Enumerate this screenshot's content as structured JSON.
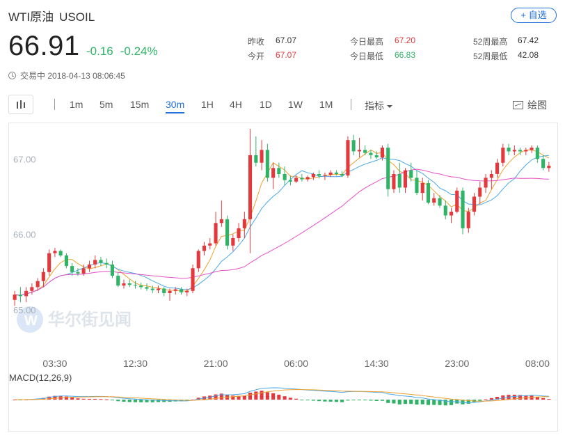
{
  "header": {
    "name": "WTI原油",
    "symbol": "USOIL",
    "watch_label": "+ 自选",
    "price": "66.91",
    "change": "-0.16",
    "change_pct": "-0.24%",
    "status": "交易中",
    "timestamp": "2018-04-13 08:06:45"
  },
  "stats": [
    {
      "label": "昨收",
      "value": "67.07",
      "color": "dark"
    },
    {
      "label": "今开",
      "value": "67.07",
      "color": "red"
    },
    {
      "label": "今日最高",
      "value": "67.20",
      "color": "red"
    },
    {
      "label": "今日最低",
      "value": "66.83",
      "color": "green"
    },
    {
      "label": "52周最高",
      "value": "67.42",
      "color": "dark"
    },
    {
      "label": "52周最低",
      "value": "42.08",
      "color": "dark"
    }
  ],
  "toolbar": {
    "timeframes": [
      "1m",
      "5m",
      "15m",
      "30m",
      "1H",
      "4H",
      "1D",
      "1W",
      "1M"
    ],
    "active": "30m",
    "indicator_label": "指标",
    "draw_label": "绘图"
  },
  "watermark": "华尔街见闻",
  "colors": {
    "up": "#e4393c",
    "down": "#2fb466",
    "ma_short": "#f0a030",
    "ma_mid": "#4aa8e8",
    "ma_long": "#e64fc8",
    "accent": "#1e6fd9"
  },
  "chart_data": {
    "type": "candlestick",
    "title": "",
    "y_ticks": [
      "67.00",
      "66.00",
      "65.00"
    ],
    "y_tick_values": [
      67.0,
      66.0,
      65.0
    ],
    "ylim": [
      64.5,
      67.4
    ],
    "x_ticks": [
      "03:30",
      "12:30",
      "21:00",
      "06:00",
      "14:30",
      "23:00",
      "08:00"
    ],
    "x_tick_index": [
      7,
      21,
      35,
      49,
      63,
      77,
      91
    ],
    "candles": [
      [
        65.13,
        65.25,
        65.05,
        65.2
      ],
      [
        65.2,
        65.3,
        65.1,
        65.18
      ],
      [
        65.18,
        65.3,
        65.1,
        65.25
      ],
      [
        65.25,
        65.35,
        65.2,
        65.3
      ],
      [
        65.3,
        65.42,
        65.25,
        65.38
      ],
      [
        65.38,
        65.55,
        65.3,
        65.5
      ],
      [
        65.5,
        65.8,
        65.45,
        65.75
      ],
      [
        65.75,
        65.82,
        65.7,
        65.78
      ],
      [
        65.78,
        65.8,
        65.7,
        65.72
      ],
      [
        65.72,
        65.75,
        65.55,
        65.58
      ],
      [
        65.58,
        65.62,
        65.45,
        65.5
      ],
      [
        65.5,
        65.55,
        65.45,
        65.48
      ],
      [
        65.48,
        65.6,
        65.45,
        65.55
      ],
      [
        65.55,
        65.65,
        65.5,
        65.6
      ],
      [
        65.6,
        65.72,
        65.55,
        65.66
      ],
      [
        65.66,
        65.7,
        65.58,
        65.62
      ],
      [
        65.62,
        65.68,
        65.55,
        65.6
      ],
      [
        65.6,
        65.65,
        65.42,
        65.45
      ],
      [
        65.45,
        65.5,
        65.3,
        65.32
      ],
      [
        65.32,
        65.4,
        65.28,
        65.35
      ],
      [
        65.35,
        65.4,
        65.3,
        65.33
      ],
      [
        65.33,
        65.38,
        65.28,
        65.32
      ],
      [
        65.32,
        65.36,
        65.27,
        65.3
      ],
      [
        65.3,
        65.35,
        65.25,
        65.28
      ],
      [
        65.28,
        65.32,
        65.22,
        65.26
      ],
      [
        65.26,
        65.32,
        65.22,
        65.28
      ],
      [
        65.28,
        65.3,
        65.18,
        65.22
      ],
      [
        65.22,
        65.28,
        65.12,
        65.25
      ],
      [
        65.25,
        65.3,
        65.2,
        65.27
      ],
      [
        65.27,
        65.3,
        65.2,
        65.23
      ],
      [
        65.23,
        65.28,
        65.18,
        65.25
      ],
      [
        65.25,
        65.6,
        65.22,
        65.55
      ],
      [
        65.55,
        65.8,
        65.5,
        65.78
      ],
      [
        65.78,
        65.9,
        65.72,
        65.85
      ],
      [
        65.85,
        65.95,
        65.8,
        65.88
      ],
      [
        65.88,
        66.3,
        65.85,
        66.15
      ],
      [
        66.15,
        66.45,
        66.1,
        66.2
      ],
      [
        66.2,
        66.25,
        65.8,
        65.85
      ],
      [
        65.85,
        66.0,
        65.78,
        65.95
      ],
      [
        65.95,
        66.15,
        65.9,
        66.08
      ],
      [
        66.08,
        66.3,
        65.95,
        66.2
      ],
      [
        66.2,
        67.4,
        65.75,
        67.05
      ],
      [
        67.05,
        67.3,
        66.9,
        66.95
      ],
      [
        66.95,
        67.25,
        66.85,
        67.12
      ],
      [
        67.12,
        67.2,
        66.7,
        66.75
      ],
      [
        66.75,
        66.95,
        66.6,
        66.88
      ],
      [
        66.88,
        66.95,
        66.75,
        66.8
      ],
      [
        66.8,
        66.9,
        66.65,
        66.72
      ],
      [
        66.72,
        66.78,
        66.65,
        66.7
      ],
      [
        66.7,
        66.78,
        66.68,
        66.75
      ],
      [
        66.75,
        66.8,
        66.7,
        66.73
      ],
      [
        66.73,
        66.78,
        66.7,
        66.76
      ],
      [
        66.76,
        66.82,
        66.72,
        66.8
      ],
      [
        66.8,
        66.85,
        66.74,
        66.78
      ],
      [
        66.78,
        66.82,
        66.72,
        66.79
      ],
      [
        66.79,
        66.85,
        66.76,
        66.82
      ],
      [
        66.82,
        66.85,
        66.78,
        66.8
      ],
      [
        66.8,
        66.84,
        66.76,
        66.78
      ],
      [
        66.78,
        67.3,
        66.75,
        67.25
      ],
      [
        67.25,
        67.32,
        67.05,
        67.1
      ],
      [
        67.1,
        67.28,
        67.02,
        67.12
      ],
      [
        67.12,
        67.18,
        67.05,
        67.08
      ],
      [
        67.08,
        67.12,
        67.0,
        67.05
      ],
      [
        67.05,
        67.1,
        67.0,
        67.02
      ],
      [
        67.02,
        67.18,
        66.98,
        67.15
      ],
      [
        67.15,
        67.2,
        66.5,
        66.6
      ],
      [
        66.6,
        66.85,
        66.55,
        66.8
      ],
      [
        66.8,
        66.95,
        66.55,
        66.62
      ],
      [
        66.62,
        66.88,
        66.55,
        66.85
      ],
      [
        66.85,
        66.95,
        66.7,
        66.75
      ],
      [
        66.75,
        66.85,
        66.52,
        66.55
      ],
      [
        66.55,
        66.75,
        66.45,
        66.68
      ],
      [
        66.68,
        66.72,
        66.4,
        66.42
      ],
      [
        66.42,
        66.55,
        66.38,
        66.48
      ],
      [
        66.48,
        66.52,
        66.35,
        66.38
      ],
      [
        66.38,
        66.45,
        66.2,
        66.25
      ],
      [
        66.25,
        66.35,
        66.15,
        66.3
      ],
      [
        66.3,
        66.62,
        66.28,
        66.58
      ],
      [
        66.58,
        66.62,
        66.0,
        66.08
      ],
      [
        66.08,
        66.35,
        66.02,
        66.3
      ],
      [
        66.3,
        66.55,
        66.25,
        66.5
      ],
      [
        66.5,
        66.7,
        66.4,
        66.62
      ],
      [
        66.62,
        66.8,
        66.55,
        66.75
      ],
      [
        66.75,
        66.85,
        66.6,
        66.8
      ],
      [
        66.8,
        67.0,
        66.75,
        66.95
      ],
      [
        66.95,
        67.2,
        66.9,
        67.15
      ],
      [
        67.15,
        67.2,
        67.05,
        67.1
      ],
      [
        67.1,
        67.18,
        67.05,
        67.12
      ],
      [
        67.12,
        67.15,
        67.05,
        67.1
      ],
      [
        67.1,
        67.15,
        67.05,
        67.12
      ],
      [
        67.12,
        67.18,
        67.08,
        67.15
      ],
      [
        67.15,
        67.18,
        66.95,
        67.0
      ],
      [
        67.0,
        67.05,
        66.85,
        66.88
      ],
      [
        66.88,
        66.96,
        66.83,
        66.91
      ]
    ],
    "macd_label": "MACD(12,26,9)"
  }
}
